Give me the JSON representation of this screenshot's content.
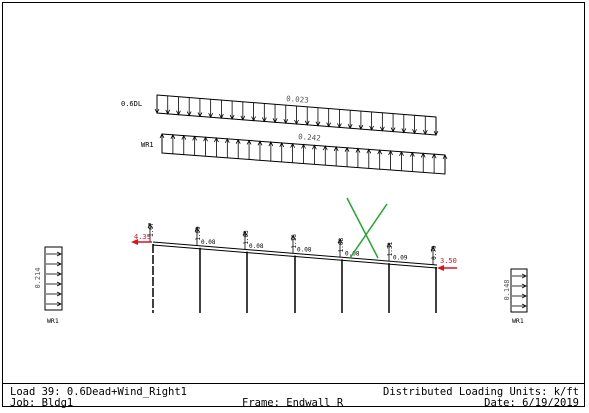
{
  "diagram": {
    "dead_load": {
      "label": "0.6DL",
      "value": "0.023"
    },
    "roof_wind": {
      "label": "WR1",
      "value": "0.242"
    },
    "left_wall": {
      "label": "WR1",
      "value": "0.214"
    },
    "right_wall": {
      "label": "WR1",
      "value": "0.148"
    },
    "left_point_load": "4.39",
    "right_point_load": "3.50",
    "column_loads": [
      "1.67",
      "1.09",
      "1.03",
      "1.16",
      "1.08",
      "1.31",
      "0.79"
    ],
    "purlin_loads": [
      "0.08",
      "0.08",
      "0.08",
      "0.08",
      "0.09"
    ],
    "colors": {
      "arrows": "#000000",
      "point_loads": "#e0101a",
      "mark": "#22a82e"
    }
  },
  "footer": {
    "load_case": "Load 39: 0.6Dead+Wind_Right1",
    "units": "Distributed Loading Units: k/ft",
    "job": "Job: Bldg1",
    "frame": "Frame: Endwall R",
    "date": "Date: 6/19/2019"
  }
}
